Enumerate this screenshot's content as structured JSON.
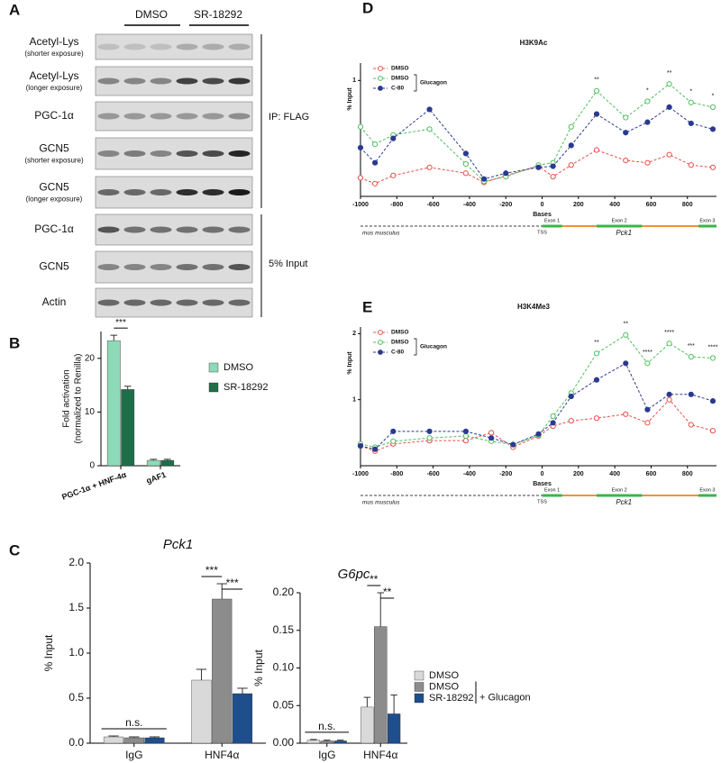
{
  "panel_labels": [
    "A",
    "B",
    "C",
    "D",
    "E"
  ],
  "blot": {
    "groups": [
      "DMSO",
      "SR-18292"
    ],
    "rows": [
      {
        "label": "Acetyl-Lys",
        "note": "(shorter exposure)"
      },
      {
        "label": "Acetyl-Lys",
        "note": "(longer exposure)"
      },
      {
        "label": "PGC-1α"
      },
      {
        "label": "GCN5",
        "note": "(shorter exposure)"
      },
      {
        "label": "GCN5",
        "note": "(longer exposure)"
      },
      {
        "label": "PGC-1α"
      },
      {
        "label": "GCN5"
      },
      {
        "label": "Actin"
      }
    ],
    "brackets": [
      "IP: FLAG",
      "5% Input"
    ]
  },
  "chart_data": [
    {
      "type": "bar",
      "ylabel": [
        "Fold activation",
        "(normalized to Renilla)"
      ],
      "categories": [
        "PGC-1α + HNF-4α",
        "gAF1"
      ],
      "series": [
        {
          "name": "DMSO",
          "color": "#8ed9b7",
          "values": [
            23.3,
            1.0
          ],
          "errors": [
            1.0,
            0.2
          ]
        },
        {
          "name": "SR-18292",
          "color": "#1f6e4a",
          "values": [
            14.2,
            1.0
          ],
          "errors": [
            0.6,
            0.2
          ]
        }
      ],
      "ylim": [
        0,
        25
      ],
      "yticks": [
        0,
        10,
        20
      ],
      "significance": [
        "***"
      ]
    },
    {
      "type": "bar",
      "title": "Pck1",
      "ylabel": "% Input",
      "categories": [
        "IgG",
        "HNF4α"
      ],
      "series": [
        {
          "color": "#d9d9d9",
          "values": [
            0.07,
            0.7
          ],
          "errors": [
            0.01,
            0.12
          ]
        },
        {
          "color": "#8c8c8c",
          "values": [
            0.06,
            1.6
          ],
          "errors": [
            0.01,
            0.17
          ]
        },
        {
          "color": "#1f4e8c",
          "values": [
            0.06,
            0.55
          ],
          "errors": [
            0.01,
            0.06
          ]
        }
      ],
      "ylim": [
        0,
        2
      ],
      "yticks": [
        {
          "value": 0,
          "label": "0.0"
        },
        0.5,
        {
          "value": 1,
          "label": "1.0"
        },
        1.5,
        {
          "value": 2,
          "label": "2.0"
        }
      ],
      "significance": [
        "n.s.",
        "***",
        "***"
      ]
    },
    {
      "type": "bar",
      "title": "G6pc",
      "ylabel": "% Input",
      "categories": [
        "IgG",
        "HNF4α"
      ],
      "series": [
        {
          "name": "DMSO",
          "color": "#d9d9d9",
          "values": [
            0.004,
            0.048
          ],
          "errors": [
            0.001,
            0.013
          ]
        },
        {
          "name": "DMSO",
          "color": "#8c8c8c",
          "values": [
            0.003,
            0.155
          ],
          "errors": [
            0.001,
            0.045
          ]
        },
        {
          "name": "SR-18292",
          "color": "#1f4e8c",
          "values": [
            0.003,
            0.039
          ],
          "errors": [
            0.001,
            0.025
          ]
        }
      ],
      "legend_bracket": "+ Glucagon",
      "ylim": [
        0,
        0.2
      ],
      "yticks": [
        {
          "value": 0,
          "label": "0.00"
        },
        0.05,
        {
          "value": 0.1,
          "label": "0.10"
        },
        0.15,
        {
          "value": 0.2,
          "label": "0.20"
        }
      ],
      "significance": [
        "n.s.",
        "**",
        "**"
      ]
    },
    {
      "type": "line",
      "title": "H3K9Ac",
      "ylabel": "% Input",
      "x": [
        -1000,
        -920,
        -820,
        -620,
        -420,
        -320,
        -200,
        -20,
        60,
        160,
        300,
        460,
        580,
        700,
        820,
        940
      ],
      "series": [
        {
          "name": "DMSO",
          "color": "#e8504a",
          "hollow": true,
          "values": [
            0.16,
            0.11,
            0.18,
            0.25,
            0.2,
            0.12,
            0.18,
            0.26,
            0.17,
            0.27,
            0.4,
            0.31,
            0.29,
            0.36,
            0.27,
            0.25
          ]
        },
        {
          "name": "DMSO",
          "color": "#4fbf5f",
          "hollow": true,
          "values": [
            0.6,
            0.45,
            0.53,
            0.58,
            0.28,
            0.13,
            0.17,
            0.27,
            0.29,
            0.6,
            0.91,
            0.68,
            0.82,
            0.97,
            0.81,
            0.77
          ]
        },
        {
          "name": "C-80",
          "color": "#2b3a8f",
          "hollow": false,
          "values": [
            0.42,
            0.29,
            0.5,
            0.75,
            0.37,
            0.15,
            0.2,
            0.25,
            0.26,
            0.44,
            0.71,
            0.55,
            0.64,
            0.77,
            0.63,
            0.58
          ]
        }
      ],
      "legend_bracket": "Glucagon",
      "xlim": [
        -1000,
        960
      ],
      "xticks": [
        -1000,
        -800,
        -600,
        -400,
        -200,
        0,
        200,
        400,
        600,
        800
      ],
      "ylim": [
        0,
        1.15
      ],
      "yticks": [
        1
      ],
      "annotations": [
        {
          "x": 300,
          "label": "**"
        },
        {
          "x": 580,
          "label": "*"
        },
        {
          "x": 700,
          "label": "**"
        },
        {
          "x": 820,
          "label": "*"
        },
        {
          "x": 940,
          "label": "*"
        }
      ],
      "track": {
        "label": "Bases",
        "exons": [
          "Exon 1",
          "Exon 2",
          "Exon 3"
        ],
        "tss": "TSS",
        "gene": "Pck1",
        "species": "mus musculus"
      }
    },
    {
      "type": "line",
      "title": "H3K4Me3",
      "ylabel": "% Input",
      "x": [
        -1000,
        -920,
        -820,
        -620,
        -420,
        -280,
        -160,
        -20,
        60,
        160,
        300,
        460,
        580,
        700,
        820,
        940
      ],
      "series": [
        {
          "name": "DMSO",
          "color": "#e8504a",
          "hollow": true,
          "values": [
            0.3,
            0.22,
            0.33,
            0.38,
            0.38,
            0.5,
            0.28,
            0.45,
            0.6,
            0.68,
            0.72,
            0.78,
            0.65,
            1.0,
            0.62,
            0.53
          ]
        },
        {
          "name": "DMSO",
          "color": "#4fbf5f",
          "hollow": true,
          "values": [
            0.33,
            0.28,
            0.37,
            0.42,
            0.45,
            0.37,
            0.32,
            0.46,
            0.75,
            1.1,
            1.7,
            1.98,
            1.55,
            1.85,
            1.65,
            1.63
          ]
        },
        {
          "name": "C-80",
          "color": "#2b3a8f",
          "hollow": false,
          "values": [
            0.3,
            0.25,
            0.52,
            0.52,
            0.52,
            0.42,
            0.32,
            0.48,
            0.65,
            1.05,
            1.3,
            1.55,
            0.85,
            1.08,
            1.08,
            0.98
          ]
        }
      ],
      "legend_bracket": "Glucagon",
      "xlim": [
        -1000,
        960
      ],
      "xticks": [
        -1000,
        -800,
        -600,
        -400,
        -200,
        0,
        200,
        400,
        600,
        800
      ],
      "ylim": [
        0,
        2.1
      ],
      "yticks": [
        1,
        2
      ],
      "annotations": [
        {
          "x": 300,
          "label": "**"
        },
        {
          "x": 460,
          "label": "**"
        },
        {
          "x": 580,
          "label": "****"
        },
        {
          "x": 700,
          "label": "****"
        },
        {
          "x": 820,
          "label": "***"
        },
        {
          "x": 940,
          "label": "****"
        }
      ],
      "track": {
        "label": "Bases",
        "exons": [
          "Exon 1",
          "Exon 2",
          "Exon 3"
        ],
        "tss": "TSS",
        "gene": "Pck1",
        "species": "mus musculus"
      }
    }
  ]
}
